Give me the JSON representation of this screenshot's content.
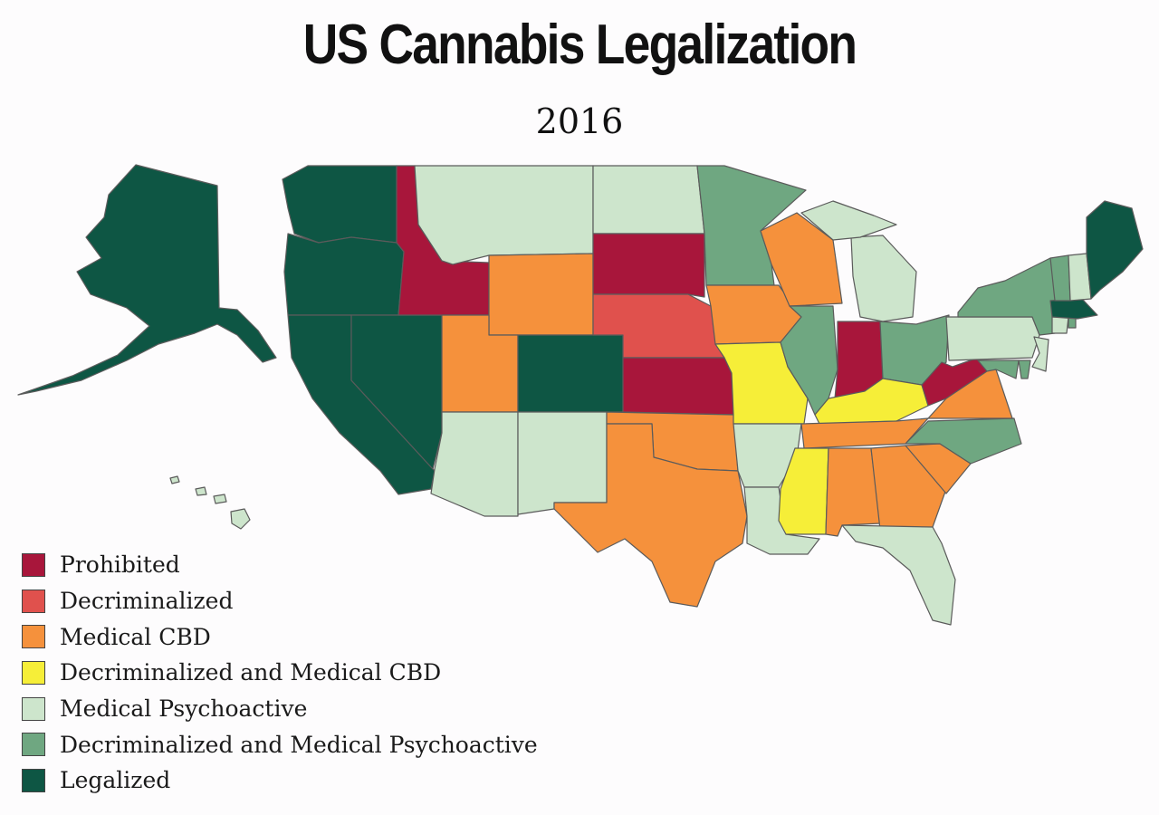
{
  "title": "US Cannabis Legalization",
  "subtitle": "2016",
  "colors": {
    "prohibited": "#a8163b",
    "decriminalized": "#e0514d",
    "medical_cbd": "#f5913c",
    "decrim_medical_cbd": "#f6ee38",
    "medical_psychoactive": "#cde5cc",
    "decrim_medical_psychoactive": "#6fa781",
    "legalized": "#0e5644"
  },
  "legend": [
    {
      "key": "prohibited",
      "label": "Prohibited"
    },
    {
      "key": "decriminalized",
      "label": "Decriminalized"
    },
    {
      "key": "medical_cbd",
      "label": "Medical CBD"
    },
    {
      "key": "decrim_medical_cbd",
      "label": "Decriminalized and Medical CBD"
    },
    {
      "key": "medical_psychoactive",
      "label": "Medical Psychoactive"
    },
    {
      "key": "decrim_medical_psychoactive",
      "label": "Decriminalized and Medical Psychoactive"
    },
    {
      "key": "legalized",
      "label": "Legalized"
    }
  ],
  "states": {
    "AK": "legalized",
    "WA": "legalized",
    "OR": "legalized",
    "CA": "legalized",
    "NV": "legalized",
    "ID": "prohibited",
    "MT": "medical_psychoactive",
    "WY": "medical_cbd",
    "UT": "medical_cbd",
    "AZ": "medical_psychoactive",
    "CO": "legalized",
    "NM": "medical_psychoactive",
    "ND": "medical_psychoactive",
    "SD": "prohibited",
    "NE": "decriminalized",
    "KS": "prohibited",
    "OK": "medical_cbd",
    "TX": "medical_cbd",
    "MN": "decrim_medical_psychoactive",
    "IA": "medical_cbd",
    "MO": "decrim_medical_cbd",
    "AR": "medical_psychoactive",
    "LA": "medical_psychoactive",
    "WI": "medical_cbd",
    "IL": "decrim_medical_psychoactive",
    "MI": "medical_psychoactive",
    "IN": "prohibited",
    "OH": "decrim_medical_psychoactive",
    "KY": "decrim_medical_cbd",
    "TN": "medical_cbd",
    "MS": "decrim_medical_cbd",
    "AL": "medical_cbd",
    "GA": "medical_cbd",
    "FL": "medical_psychoactive",
    "SC": "medical_cbd",
    "NC": "decrim_medical_psychoactive",
    "VA": "medical_cbd",
    "WV": "prohibited",
    "PA": "medical_psychoactive",
    "NY": "decrim_medical_psychoactive",
    "VT": "decrim_medical_psychoactive",
    "NH": "medical_psychoactive",
    "ME": "legalized",
    "MA": "legalized",
    "RI": "decrim_medical_psychoactive",
    "CT": "medical_psychoactive",
    "NJ": "medical_psychoactive",
    "DE": "decrim_medical_psychoactive",
    "MD": "decrim_medical_psychoactive",
    "HI": "medical_psychoactive"
  }
}
